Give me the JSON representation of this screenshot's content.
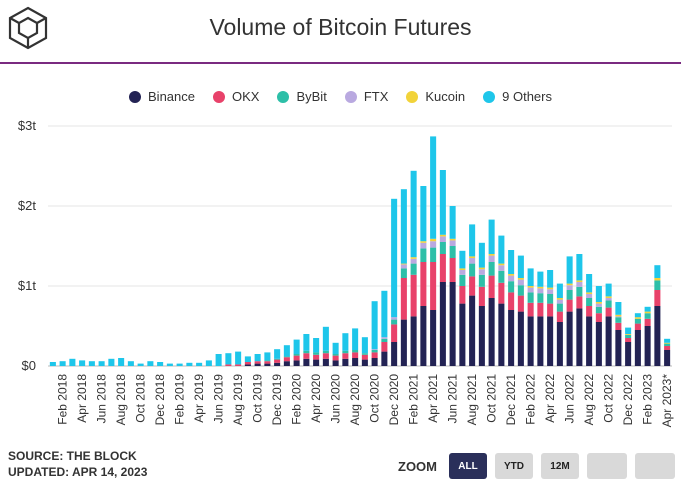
{
  "header": {
    "title": "Volume of Bitcoin Futures"
  },
  "colors": {
    "brand_rule": "#7a2a80",
    "zoom_active": "#2a2f5a"
  },
  "legend": [
    {
      "label": "Binance",
      "color": "#232354"
    },
    {
      "label": "OKX",
      "color": "#e8426a"
    },
    {
      "label": "ByBit",
      "color": "#2dbfa8"
    },
    {
      "label": "FTX",
      "color": "#b9a9e0"
    },
    {
      "label": "Kucoin",
      "color": "#f2d33a"
    },
    {
      "label": "9 Others",
      "color": "#1ec6ea"
    }
  ],
  "footer": {
    "source": "SOURCE: THE BLOCK",
    "updated": "UPDATED: APR 14, 2023"
  },
  "zoom": {
    "label": "ZOOM",
    "buttons": [
      "ALL",
      "YTD",
      "12M",
      "",
      ""
    ],
    "active": "ALL"
  },
  "chart_data": {
    "type": "bar",
    "stacked": true,
    "title": "Volume of Bitcoin Futures",
    "ylim": [
      0,
      3
    ],
    "y_unit": "trillion USD",
    "yticks": [
      "$0",
      "$1t",
      "$2t",
      "$3t"
    ],
    "xtick_labels": [
      "Feb 2018",
      "Apr 2018",
      "Jun 2018",
      "Aug 2018",
      "Oct 2018",
      "Dec 2018",
      "Feb 2019",
      "Apr 2019",
      "Jun 2019",
      "Aug 2019",
      "Oct 2019",
      "Dec 2019",
      "Feb 2020",
      "Apr 2020",
      "Jun 2020",
      "Aug 2020",
      "Oct 2020",
      "Dec 2020",
      "Feb 2021",
      "Apr 2021",
      "Jun 2021",
      "Aug 2021",
      "Oct 2021",
      "Dec 2021",
      "Feb 2022",
      "Apr 2022",
      "Jun 2022",
      "Aug 2022",
      "Oct 2022",
      "Dec 2022",
      "Feb 2023",
      "Apr 2023*"
    ],
    "categories": [
      "Jan 2018",
      "Feb 2018",
      "Mar 2018",
      "Apr 2018",
      "May 2018",
      "Jun 2018",
      "Jul 2018",
      "Aug 2018",
      "Sep 2018",
      "Oct 2018",
      "Nov 2018",
      "Dec 2018",
      "Jan 2019",
      "Feb 2019",
      "Mar 2019",
      "Apr 2019",
      "May 2019",
      "Jun 2019",
      "Jul 2019",
      "Aug 2019",
      "Sep 2019",
      "Oct 2019",
      "Nov 2019",
      "Dec 2019",
      "Jan 2020",
      "Feb 2020",
      "Mar 2020",
      "Apr 2020",
      "May 2020",
      "Jun 2020",
      "Jul 2020",
      "Aug 2020",
      "Sep 2020",
      "Oct 2020",
      "Nov 2020",
      "Dec 2020",
      "Jan 2021",
      "Feb 2021",
      "Mar 2021",
      "Apr 2021",
      "May 2021",
      "Jun 2021",
      "Jul 2021",
      "Aug 2021",
      "Sep 2021",
      "Oct 2021",
      "Nov 2021",
      "Dec 2021",
      "Jan 2022",
      "Feb 2022",
      "Mar 2022",
      "Apr 2022",
      "May 2022",
      "Jun 2022",
      "Jul 2022",
      "Aug 2022",
      "Sep 2022",
      "Oct 2022",
      "Nov 2022",
      "Dec 2022",
      "Jan 2023",
      "Feb 2023",
      "Mar 2023",
      "Apr 2023*"
    ],
    "series": [
      {
        "name": "Binance",
        "color": "#232354",
        "values": [
          0,
          0,
          0,
          0,
          0,
          0,
          0,
          0,
          0,
          0,
          0,
          0,
          0,
          0,
          0,
          0,
          0,
          0,
          0,
          0,
          0.02,
          0.03,
          0.03,
          0.04,
          0.06,
          0.07,
          0.09,
          0.08,
          0.09,
          0.07,
          0.09,
          0.1,
          0.08,
          0.1,
          0.18,
          0.3,
          0.58,
          0.62,
          0.75,
          0.7,
          1.05,
          1.05,
          0.78,
          0.88,
          0.75,
          0.85,
          0.78,
          0.7,
          0.68,
          0.62,
          0.62,
          0.62,
          0.55,
          0.68,
          0.72,
          0.62,
          0.55,
          0.62,
          0.45,
          0.3,
          0.45,
          0.5,
          0.75,
          0.2
        ]
      },
      {
        "name": "OKX",
        "color": "#e8426a",
        "values": [
          0,
          0,
          0,
          0,
          0,
          0,
          0,
          0,
          0,
          0,
          0,
          0,
          0,
          0,
          0,
          0,
          0,
          0,
          0.02,
          0.02,
          0.03,
          0.03,
          0.03,
          0.04,
          0.05,
          0.06,
          0.07,
          0.06,
          0.07,
          0.06,
          0.07,
          0.07,
          0.06,
          0.07,
          0.12,
          0.22,
          0.52,
          0.52,
          0.55,
          0.6,
          0.35,
          0.3,
          0.22,
          0.24,
          0.24,
          0.28,
          0.26,
          0.22,
          0.2,
          0.17,
          0.17,
          0.16,
          0.13,
          0.15,
          0.15,
          0.13,
          0.11,
          0.11,
          0.09,
          0.05,
          0.08,
          0.09,
          0.2,
          0.05
        ]
      },
      {
        "name": "ByBit",
        "color": "#2dbfa8",
        "values": [
          0,
          0,
          0,
          0,
          0,
          0,
          0,
          0,
          0,
          0,
          0,
          0,
          0,
          0,
          0,
          0,
          0,
          0,
          0,
          0,
          0,
          0,
          0.01,
          0.01,
          0.01,
          0.02,
          0.03,
          0.03,
          0.03,
          0.02,
          0.03,
          0.03,
          0.02,
          0.03,
          0.04,
          0.06,
          0.12,
          0.14,
          0.17,
          0.18,
          0.15,
          0.15,
          0.14,
          0.16,
          0.15,
          0.17,
          0.15,
          0.14,
          0.13,
          0.13,
          0.12,
          0.12,
          0.1,
          0.12,
          0.12,
          0.1,
          0.08,
          0.09,
          0.07,
          0.04,
          0.06,
          0.07,
          0.12,
          0.03
        ]
      },
      {
        "name": "FTX",
        "color": "#b9a9e0",
        "values": [
          0,
          0,
          0,
          0,
          0,
          0,
          0,
          0,
          0,
          0,
          0,
          0,
          0,
          0,
          0,
          0,
          0,
          0,
          0,
          0,
          0,
          0,
          0,
          0,
          0,
          0,
          0,
          0,
          0,
          0,
          0,
          0,
          0,
          0.01,
          0.02,
          0.03,
          0.05,
          0.06,
          0.07,
          0.08,
          0.07,
          0.07,
          0.06,
          0.07,
          0.07,
          0.08,
          0.07,
          0.07,
          0.07,
          0.06,
          0.06,
          0.06,
          0.05,
          0.06,
          0.06,
          0.05,
          0.04,
          0.03,
          0.01,
          0,
          0,
          0,
          0,
          0
        ]
      },
      {
        "name": "Kucoin",
        "color": "#f2d33a",
        "values": [
          0,
          0,
          0,
          0,
          0,
          0,
          0,
          0,
          0,
          0,
          0,
          0,
          0,
          0,
          0,
          0,
          0,
          0,
          0,
          0,
          0,
          0,
          0,
          0,
          0,
          0,
          0,
          0,
          0,
          0,
          0,
          0,
          0,
          0,
          0,
          0,
          0.01,
          0.02,
          0.02,
          0.03,
          0.02,
          0.02,
          0.02,
          0.02,
          0.02,
          0.02,
          0.02,
          0.02,
          0.02,
          0.02,
          0.02,
          0.02,
          0.02,
          0.02,
          0.02,
          0.02,
          0.02,
          0.02,
          0.02,
          0.01,
          0.02,
          0.02,
          0.03,
          0.01
        ]
      },
      {
        "name": "9 Others",
        "color": "#1ec6ea",
        "values": [
          0.05,
          0.06,
          0.09,
          0.07,
          0.06,
          0.06,
          0.09,
          0.1,
          0.06,
          0.03,
          0.06,
          0.05,
          0.03,
          0.03,
          0.04,
          0.04,
          0.07,
          0.15,
          0.14,
          0.16,
          0.07,
          0.09,
          0.1,
          0.12,
          0.14,
          0.18,
          0.21,
          0.18,
          0.3,
          0.14,
          0.22,
          0.27,
          0.2,
          0.6,
          0.58,
          1.48,
          0.93,
          1.08,
          0.69,
          1.28,
          0.81,
          0.41,
          0.22,
          0.4,
          0.31,
          0.43,
          0.35,
          0.3,
          0.28,
          0.22,
          0.19,
          0.22,
          0.18,
          0.34,
          0.33,
          0.23,
          0.2,
          0.16,
          0.16,
          0.08,
          0.05,
          0.06,
          0.16,
          0.05
        ]
      }
    ]
  }
}
